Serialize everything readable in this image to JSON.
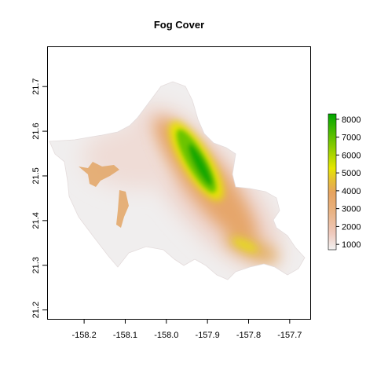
{
  "map": {
    "title": "Fog Cover",
    "x_ticks": [
      "-158.2",
      "-158.1",
      "-158.0",
      "-157.9",
      "-157.8",
      "-157.7"
    ],
    "y_ticks": [
      "21.2",
      "21.3",
      "21.4",
      "21.5",
      "21.6",
      "21.7"
    ],
    "legend_ticks": [
      "1000",
      "2000",
      "3000",
      "4000",
      "5000",
      "6000",
      "7000",
      "8000"
    ],
    "colors": {
      "low": "#f2f2f2",
      "pink": "#efc9bd",
      "orange": "#e6a35f",
      "yellow": "#e6e600",
      "green": "#00a600",
      "background": "#ffffff"
    }
  },
  "chart_data": {
    "type": "heatmap",
    "title": "Fog Cover",
    "xlim": [
      -158.29,
      -157.65
    ],
    "ylim": [
      21.18,
      21.79
    ],
    "x_ticks": [
      -158.2,
      -158.1,
      -158.0,
      -157.9,
      -157.8,
      -157.7
    ],
    "y_ticks": [
      21.2,
      21.3,
      21.4,
      21.5,
      21.6,
      21.7
    ],
    "legend": {
      "position": "right",
      "min": 700,
      "max": 8300,
      "ticks": [
        1000,
        2000,
        3000,
        4000,
        5000,
        6000,
        7000,
        8000
      ]
    },
    "grid": false
  }
}
